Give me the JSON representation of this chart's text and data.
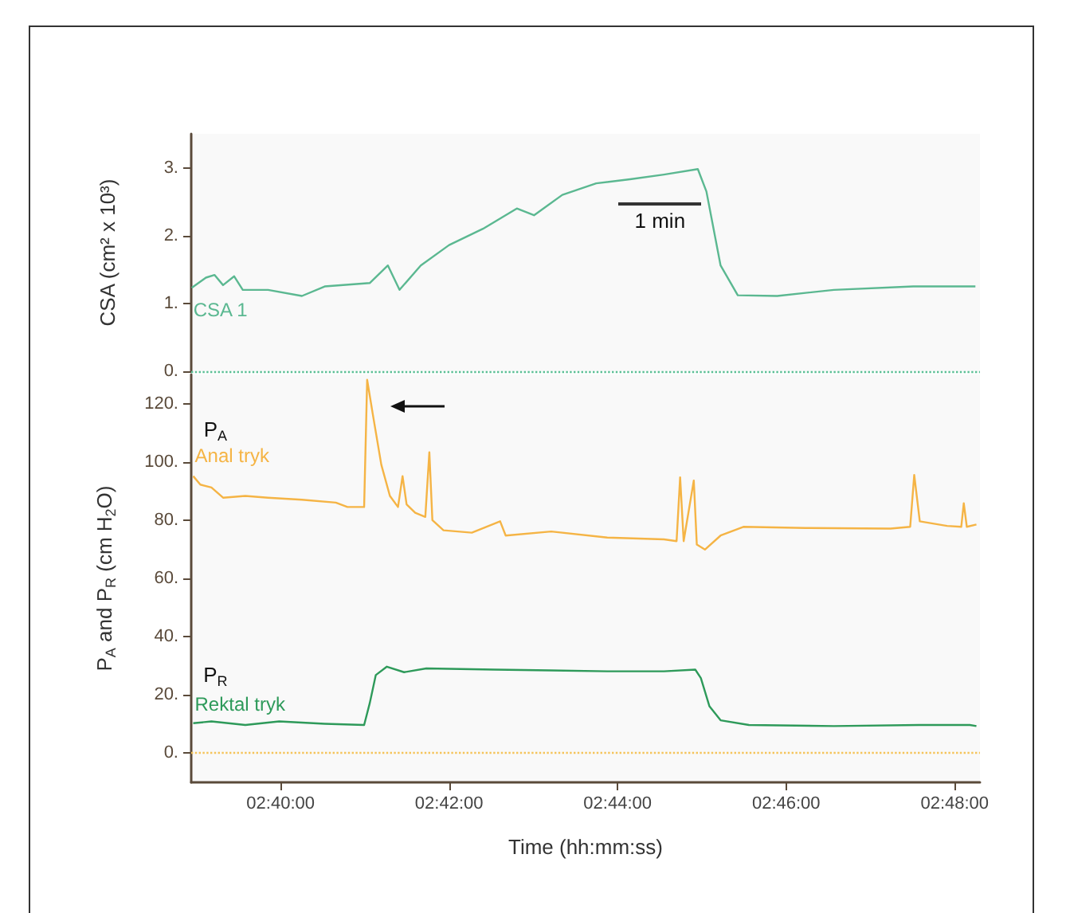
{
  "chart_data": [
    {
      "type": "line",
      "ylabel": "CSA (cm² x 10³)",
      "xlim": [
        2.649,
        2.805
      ],
      "ylim": [
        0,
        3.5
      ],
      "yticks": [
        {
          "value": 0,
          "label": "0."
        },
        {
          "value": 1,
          "label": "1."
        },
        {
          "value": 2,
          "label": "2."
        },
        {
          "value": 3,
          "label": "3."
        }
      ],
      "tick_labels": "y",
      "grid": false,
      "marker": "none",
      "line_style": "solid",
      "annotations": [
        "1 min"
      ],
      "ref_lines": [
        {
          "axis": "y",
          "value": 0,
          "color": "#5bbf95",
          "line_style": "dotted"
        }
      ],
      "series": [
        {
          "name": "CSA 1",
          "color": "#5bb891",
          "x": [
            2.6491,
            2.6519,
            2.6536,
            2.6553,
            2.6575,
            2.6592,
            2.6642,
            2.6709,
            2.6754,
            2.6843,
            2.6879,
            2.6902,
            2.6944,
            2.7,
            2.7067,
            2.7134,
            2.7168,
            2.7224,
            2.7291,
            2.7358,
            2.7425,
            2.7492,
            2.7509,
            2.7537,
            2.7571,
            2.7649,
            2.7761,
            2.7918,
            2.8041
          ],
          "values": [
            1.23,
            1.38,
            1.42,
            1.27,
            1.4,
            1.2,
            1.2,
            1.11,
            1.25,
            1.3,
            1.56,
            1.2,
            1.56,
            1.86,
            2.1,
            2.4,
            2.3,
            2.6,
            2.77,
            2.83,
            2.9,
            2.98,
            2.65,
            1.56,
            1.12,
            1.11,
            1.2,
            1.25,
            1.25
          ]
        }
      ]
    },
    {
      "type": "line",
      "xlabel": "Time (hh:mm:ss)",
      "ylabel": "P$_{A}$ and P$_{R}$ (cm H$_{2}$O)",
      "xlim": [
        2.649,
        2.805
      ],
      "xticks": [
        {
          "value": 2.66667,
          "label": "02:40:00"
        },
        {
          "value": 2.7,
          "label": "02:42:00"
        },
        {
          "value": 2.73333,
          "label": "02:44:00"
        },
        {
          "value": 2.76667,
          "label": "02:46:00"
        },
        {
          "value": 2.8,
          "label": "02:48:00"
        }
      ],
      "ylim": [
        -10,
        130
      ],
      "yticks": [
        {
          "value": 0,
          "label": "0."
        },
        {
          "value": 20,
          "label": "20."
        },
        {
          "value": 40,
          "label": "40."
        },
        {
          "value": 60,
          "label": "60."
        },
        {
          "value": 80,
          "label": "80."
        },
        {
          "value": 100,
          "label": "100."
        },
        {
          "value": 120,
          "label": "120."
        }
      ],
      "grid": false,
      "marker": "none",
      "line_style": "solid",
      "annotations": [
        "P$_{A}$",
        "P$_{R}$"
      ],
      "ref_lines": [
        {
          "axis": "y",
          "value": 0,
          "color": "#f5c45a",
          "line_style": "dotted"
        }
      ],
      "series": [
        {
          "name": "Anal tryk",
          "color": "#f5b445",
          "x": [
            2.6494,
            2.6508,
            2.653,
            2.6553,
            2.6597,
            2.6642,
            2.6709,
            2.6776,
            2.6799,
            2.6832,
            2.6838,
            2.6849,
            2.6866,
            2.6883,
            2.6899,
            2.6908,
            2.6916,
            2.6933,
            2.6953,
            2.6961,
            2.6967,
            2.6989,
            2.7045,
            2.7101,
            2.7112,
            2.7202,
            2.7313,
            2.7425,
            2.745,
            2.7457,
            2.7464,
            2.7484,
            2.749,
            2.7506,
            2.7537,
            2.7582,
            2.7705,
            2.7873,
            2.7912,
            2.792,
            2.7931,
            2.7985,
            2.8013,
            2.8018,
            2.8024,
            2.8043
          ],
          "values": [
            95.1,
            92.2,
            91.2,
            87.7,
            88.3,
            87.7,
            87.0,
            86.0,
            84.5,
            84.5,
            128.2,
            116.5,
            99.0,
            88.3,
            84.5,
            95.1,
            85.4,
            82.5,
            81.1,
            103.3,
            80.0,
            76.5,
            75.7,
            79.6,
            74.7,
            76.1,
            74.0,
            73.4,
            72.8,
            94.7,
            72.8,
            93.6,
            71.6,
            69.9,
            74.7,
            77.7,
            77.3,
            77.1,
            77.7,
            95.5,
            79.6,
            78.0,
            77.7,
            85.8,
            77.7,
            78.5
          ]
        },
        {
          "name": "Rektal tryk",
          "color": "#2e9a5a",
          "x": [
            2.6494,
            2.653,
            2.6597,
            2.6664,
            2.6754,
            2.6832,
            2.6843,
            2.6855,
            2.6877,
            2.6911,
            2.6955,
            2.709,
            2.7201,
            2.7313,
            2.7425,
            2.7487,
            2.7498,
            2.7515,
            2.7537,
            2.7593,
            2.7761,
            2.7929,
            2.803,
            2.8043
          ],
          "values": [
            10.3,
            10.9,
            9.7,
            10.9,
            10.1,
            9.7,
            17.1,
            26.8,
            29.7,
            27.8,
            29.1,
            28.7,
            28.4,
            28.1,
            28.1,
            28.7,
            25.8,
            16.1,
            11.3,
            9.7,
            9.3,
            9.7,
            9.7,
            9.3
          ]
        }
      ]
    }
  ]
}
